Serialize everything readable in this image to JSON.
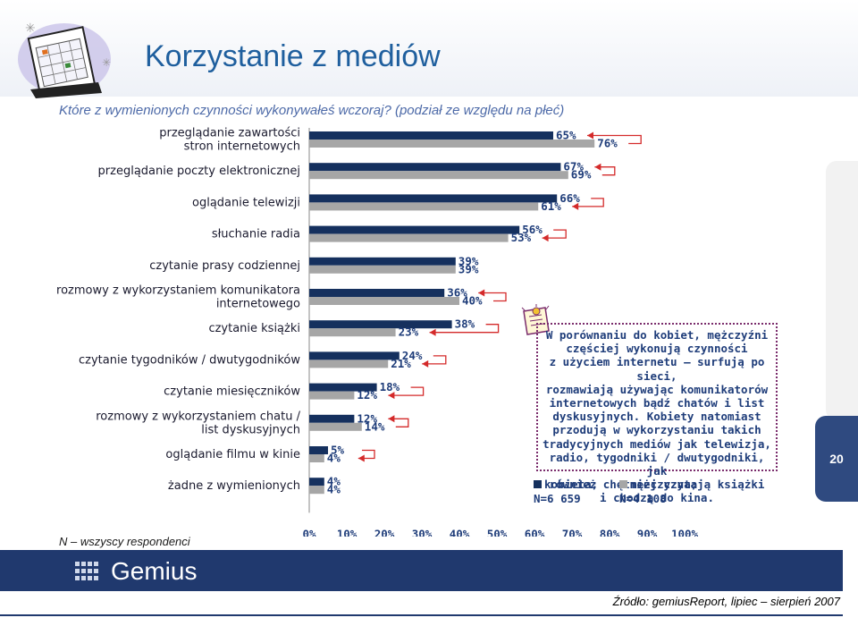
{
  "page": {
    "title": "Korzystanie z mediów",
    "question": "Które z wymienionych czynności wykonywałeś wczoraj? (podział ze względu na płeć)",
    "page_number": "20",
    "n_note": "N – wszyscy respondenci",
    "brand": "Gemius",
    "source": "Źródło: gemiusReport, lipiec – sierpień 2007",
    "note_lines": [
      "W porównaniu do kobiet, mężczyźni",
      "częściej wykonują czynności",
      "z użyciem internetu – surfują po sieci,",
      "rozmawiają używając komunikatorów",
      "internetowych bądź chatów i list",
      "dyskusyjnych. Kobiety natomiast",
      "przodują w wykorzystaniu takich",
      "tradycyjnych mediów jak telewizja,",
      "radio, tygodniki / dwutygodniki, jak",
      "również chętniej czytają książki",
      "i chodzą do kina."
    ],
    "legend": [
      {
        "label": "kobieta;",
        "sub": "N=6 659",
        "color": "#15305e"
      },
      {
        "label": "mężczyzna;",
        "sub": "N=4 108",
        "color": "#a6a6a6"
      }
    ]
  },
  "chart_data": {
    "type": "bar",
    "orientation": "horizontal",
    "categories": [
      [
        "przeglądanie zawartości",
        "stron internetowych"
      ],
      [
        "przeglądanie poczty elektronicznej"
      ],
      [
        "oglądanie telewizji"
      ],
      [
        "słuchanie radia"
      ],
      [
        "czytanie prasy codziennej"
      ],
      [
        "rozmowy z wykorzystaniem komunikatora",
        "internetowego"
      ],
      [
        "czytanie książki"
      ],
      [
        "czytanie tygodników / dwutygodników"
      ],
      [
        "czytanie miesięczników"
      ],
      [
        "rozmowy z wykorzystaniem chatu /",
        "list dyskusyjnych"
      ],
      [
        "oglądanie filmu w kinie"
      ],
      [
        "żadne z wymienionych"
      ]
    ],
    "series": [
      {
        "name": "kobieta",
        "color": "#15305e",
        "values": [
          65,
          67,
          66,
          56,
          39,
          36,
          38,
          24,
          18,
          12,
          5,
          4
        ]
      },
      {
        "name": "mężczyzna",
        "color": "#a6a6a6",
        "values": [
          76,
          69,
          61,
          53,
          39,
          40,
          23,
          21,
          12,
          14,
          4,
          4
        ]
      }
    ],
    "highlight": [
      0,
      1,
      2,
      3,
      5,
      6,
      7,
      8,
      9,
      10
    ],
    "xlim": [
      0,
      100
    ],
    "xticks": [
      0,
      10,
      20,
      30,
      40,
      50,
      60,
      70,
      80,
      90,
      100
    ],
    "tick_suffix": "%",
    "legend_position": "right"
  }
}
